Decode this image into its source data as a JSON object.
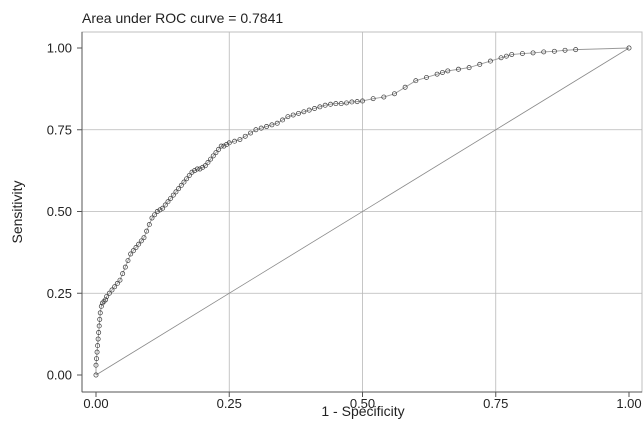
{
  "chart_data": {
    "type": "scatter",
    "title": "Area under ROC curve = 0.7841",
    "xlabel": "1 - Specificity",
    "ylabel": "Sensitivity",
    "xlim": [
      0,
      1
    ],
    "ylim": [
      0,
      1
    ],
    "x_ticks": [
      "0.00",
      "0.25",
      "0.50",
      "0.75",
      "1.00"
    ],
    "y_ticks": [
      "0.00",
      "0.25",
      "0.50",
      "0.75",
      "1.00"
    ],
    "grid": true,
    "reference_line": {
      "x": [
        0,
        1
      ],
      "y": [
        0,
        1
      ]
    },
    "series": [
      {
        "x": [
          0.0,
          0.0,
          0.001,
          0.002,
          0.003,
          0.004,
          0.005,
          0.006,
          0.007,
          0.008,
          0.01,
          0.012,
          0.015,
          0.018,
          0.02,
          0.025,
          0.03,
          0.035,
          0.04,
          0.045,
          0.05,
          0.055,
          0.06,
          0.065,
          0.07,
          0.075,
          0.08,
          0.085,
          0.09,
          0.095,
          0.1,
          0.105,
          0.11,
          0.115,
          0.12,
          0.125,
          0.13,
          0.135,
          0.14,
          0.145,
          0.15,
          0.155,
          0.16,
          0.165,
          0.17,
          0.175,
          0.18,
          0.185,
          0.19,
          0.195,
          0.2,
          0.205,
          0.21,
          0.215,
          0.22,
          0.225,
          0.23,
          0.235,
          0.24,
          0.245,
          0.25,
          0.26,
          0.27,
          0.28,
          0.29,
          0.3,
          0.31,
          0.32,
          0.33,
          0.34,
          0.35,
          0.36,
          0.37,
          0.38,
          0.39,
          0.4,
          0.41,
          0.42,
          0.43,
          0.44,
          0.45,
          0.46,
          0.47,
          0.48,
          0.49,
          0.5,
          0.52,
          0.54,
          0.56,
          0.58,
          0.6,
          0.62,
          0.64,
          0.65,
          0.66,
          0.68,
          0.7,
          0.72,
          0.74,
          0.76,
          0.77,
          0.78,
          0.8,
          0.82,
          0.84,
          0.86,
          0.88,
          0.9,
          1.0
        ],
        "y": [
          0.0,
          0.03,
          0.05,
          0.07,
          0.09,
          0.11,
          0.13,
          0.15,
          0.17,
          0.19,
          0.21,
          0.22,
          0.225,
          0.23,
          0.24,
          0.25,
          0.26,
          0.27,
          0.28,
          0.29,
          0.31,
          0.33,
          0.35,
          0.37,
          0.38,
          0.39,
          0.4,
          0.41,
          0.42,
          0.44,
          0.46,
          0.48,
          0.49,
          0.5,
          0.505,
          0.51,
          0.52,
          0.53,
          0.54,
          0.55,
          0.56,
          0.57,
          0.58,
          0.59,
          0.6,
          0.61,
          0.62,
          0.625,
          0.63,
          0.63,
          0.635,
          0.64,
          0.65,
          0.66,
          0.67,
          0.68,
          0.69,
          0.7,
          0.7,
          0.705,
          0.71,
          0.715,
          0.72,
          0.73,
          0.74,
          0.75,
          0.755,
          0.76,
          0.765,
          0.77,
          0.78,
          0.79,
          0.795,
          0.8,
          0.805,
          0.81,
          0.815,
          0.82,
          0.825,
          0.828,
          0.83,
          0.83,
          0.832,
          0.835,
          0.836,
          0.838,
          0.845,
          0.85,
          0.86,
          0.88,
          0.9,
          0.91,
          0.92,
          0.925,
          0.93,
          0.935,
          0.94,
          0.95,
          0.96,
          0.97,
          0.975,
          0.98,
          0.983,
          0.985,
          0.988,
          0.99,
          0.993,
          0.995,
          1.0
        ]
      }
    ]
  }
}
